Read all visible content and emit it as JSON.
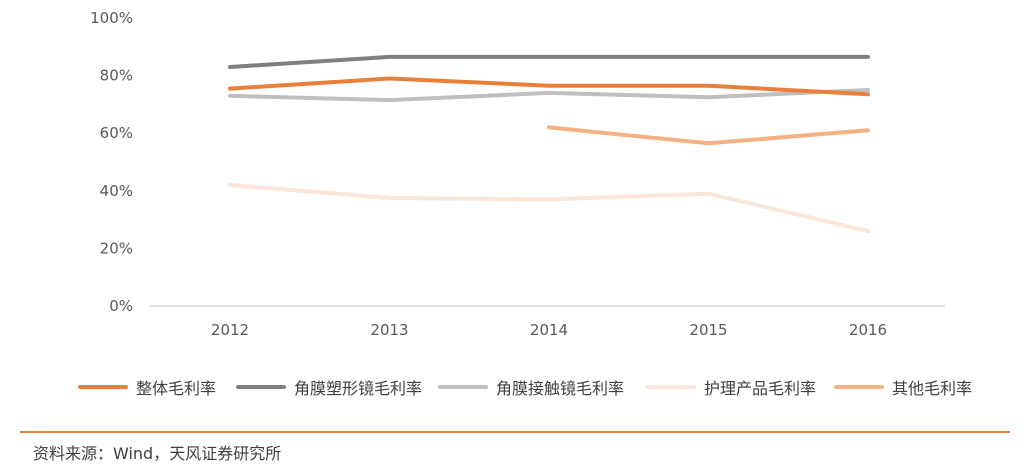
{
  "chart_data": {
    "type": "line",
    "categories": [
      "2012",
      "2013",
      "2014",
      "2015",
      "2016"
    ],
    "ylim": [
      0,
      100
    ],
    "yticks": [
      "0%",
      "20%",
      "40%",
      "60%",
      "80%",
      "100%"
    ],
    "grid": false,
    "legend_position": "bottom",
    "series": [
      {
        "name": "整体毛利率",
        "color": "#E8803C",
        "values": [
          75.5,
          79,
          76.5,
          76.5,
          73.5
        ]
      },
      {
        "name": "角膜塑形镜毛利率",
        "color": "#7F7F7F",
        "values": [
          83,
          86.5,
          86.5,
          86.5,
          86.5
        ]
      },
      {
        "name": "角膜接触镜毛利率",
        "color": "#BFBFBF",
        "values": [
          73,
          71.5,
          74,
          72.5,
          75
        ]
      },
      {
        "name": "护理产品毛利率",
        "color": "#FBE5D6",
        "values": [
          42,
          37.5,
          37,
          39,
          26
        ]
      },
      {
        "name": "其他毛利率",
        "color": "#F4B183",
        "values": [
          null,
          null,
          62,
          56.5,
          61
        ]
      }
    ]
  },
  "footer": {
    "source": "资料来源：Wind，天风证券研究所"
  }
}
